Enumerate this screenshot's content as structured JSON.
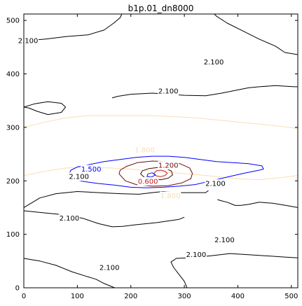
{
  "chart_data": {
    "type": "contour",
    "title": "b1p.01_dn8000",
    "xlabel": "",
    "ylabel": "",
    "xlim": [
      0,
      512
    ],
    "ylim": [
      0,
      512
    ],
    "xticks": [
      0,
      100,
      200,
      300,
      400,
      500
    ],
    "yticks": [
      0,
      100,
      200,
      300,
      400,
      500
    ],
    "grid": false,
    "levels": [
      {
        "value": 2.1,
        "label": "2.100",
        "color": "#000000",
        "paths": [
          [
            [
              0,
              462
            ],
            [
              40,
              465
            ],
            [
              80,
              470
            ],
            [
              120,
              473
            ],
            [
              150,
              482
            ],
            [
              168,
              495
            ],
            [
              180,
              505
            ],
            [
              183,
              512
            ]
          ],
          [
            [
              0,
              338
            ],
            [
              20,
              344
            ],
            [
              45,
              348
            ],
            [
              70,
              345
            ],
            [
              78,
              338
            ],
            [
              70,
              328
            ],
            [
              45,
              324
            ],
            [
              25,
              330
            ],
            [
              10,
              336
            ],
            [
              0,
              338
            ]
          ],
          [
            [
              512,
              436
            ],
            [
              488,
              440
            ],
            [
              470,
              452
            ],
            [
              440,
              465
            ],
            [
              410,
              480
            ],
            [
              380,
              495
            ],
            [
              360,
              508
            ],
            [
              356,
              512
            ]
          ],
          [
            [
              165,
              355
            ],
            [
              175,
              358
            ],
            [
              200,
              362
            ],
            [
              240,
              364
            ],
            [
              270,
              362
            ],
            [
              300,
              360
            ],
            [
              340,
              359
            ],
            [
              370,
              364
            ],
            [
              400,
              370
            ],
            [
              420,
              374
            ],
            [
              440,
              376
            ],
            [
              470,
              378
            ],
            [
              505,
              376
            ],
            [
              512,
              376
            ]
          ],
          [
            [
              0,
              150
            ],
            [
              30,
              168
            ],
            [
              60,
              176
            ],
            [
              100,
              180
            ],
            [
              140,
              178
            ],
            [
              180,
              176
            ],
            [
              215,
              175
            ],
            [
              240,
              178
            ],
            [
              260,
              180
            ],
            [
              290,
              178
            ],
            [
              320,
              178
            ],
            [
              340,
              178
            ],
            [
              345,
              182
            ]
          ],
          [
            [
              0,
              144
            ],
            [
              40,
              140
            ],
            [
              80,
              136
            ],
            [
              110,
              130
            ],
            [
              140,
              120
            ],
            [
              165,
              114
            ],
            [
              185,
              115
            ],
            [
              210,
              118
            ],
            [
              230,
              120
            ],
            [
              250,
              122
            ],
            [
              270,
              125
            ],
            [
              290,
              128
            ],
            [
              295,
              130
            ],
            [
              300,
              132
            ]
          ],
          [
            [
              512,
              150
            ],
            [
              490,
              154
            ],
            [
              465,
              158
            ],
            [
              440,
              160
            ],
            [
              420,
              156
            ],
            [
              405,
              154
            ],
            [
              395,
              154
            ],
            [
              380,
              160
            ],
            [
              368,
              163
            ],
            [
              362,
              165
            ]
          ],
          [
            [
              0,
              55
            ],
            [
              30,
              50
            ],
            [
              60,
              42
            ],
            [
              90,
              30
            ],
            [
              115,
              22
            ],
            [
              135,
              16
            ],
            [
              150,
              8
            ],
            [
              165,
              2
            ],
            [
              170,
              0
            ]
          ],
          [
            [
              512,
              56
            ],
            [
              480,
              58
            ],
            [
              450,
              60
            ],
            [
              420,
              62
            ],
            [
              385,
              64
            ],
            [
              350,
              60
            ],
            [
              310,
              56
            ],
            [
              285,
              55
            ],
            [
              275,
              48
            ],
            [
              280,
              38
            ],
            [
              290,
              25
            ],
            [
              300,
              12
            ],
            [
              305,
              0
            ]
          ]
        ],
        "labels": [
          [
            8,
            462
          ],
          [
            85,
            130
          ],
          [
            355,
            422
          ],
          [
            103,
            208
          ],
          [
            270,
            368
          ],
          [
            358,
            195
          ],
          [
            160,
            38
          ],
          [
            375,
            90
          ],
          [
            322,
            62
          ]
        ]
      },
      {
        "value": 1.8,
        "label": "1.800",
        "color": "#f7deb5",
        "paths": [
          [
            [
              0,
              300
            ],
            [
              40,
              310
            ],
            [
              80,
              318
            ],
            [
              120,
              322
            ],
            [
              160,
              322
            ],
            [
              200,
              322
            ],
            [
              240,
              322
            ],
            [
              280,
              320
            ],
            [
              320,
              318
            ],
            [
              360,
              314
            ],
            [
              400,
              310
            ],
            [
              440,
              306
            ],
            [
              480,
              302
            ],
            [
              512,
              298
            ]
          ],
          [
            [
              0,
              210
            ],
            [
              40,
              218
            ],
            [
              80,
              224
            ],
            [
              120,
              226
            ],
            [
              160,
              224
            ],
            [
              200,
              222
            ],
            [
              240,
              218
            ],
            [
              280,
              215
            ],
            [
              320,
              212
            ],
            [
              360,
              208
            ],
            [
              400,
              204
            ],
            [
              440,
              202
            ],
            [
              480,
              206
            ],
            [
              512,
              210
            ]
          ]
        ],
        "labels": [
          [
            274,
            172
          ],
          [
            226,
            258
          ]
        ]
      },
      {
        "value": 1.5,
        "label": "1.500",
        "color": "#0000ff",
        "paths": [
          [
            [
              88,
              205
            ],
            [
              110,
              199
            ],
            [
              140,
              195
            ],
            [
              170,
              192
            ],
            [
              200,
              188
            ],
            [
              230,
              187
            ],
            [
              260,
              188
            ],
            [
              290,
              190
            ],
            [
              320,
              193
            ],
            [
              350,
              200
            ],
            [
              380,
              207
            ],
            [
              410,
              214
            ],
            [
              440,
              220
            ],
            [
              448,
              222
            ],
            [
              445,
              228
            ],
            [
              420,
              232
            ],
            [
              390,
              234
            ],
            [
              360,
              236
            ],
            [
              330,
              240
            ],
            [
              300,
              244
            ],
            [
              270,
              246
            ],
            [
              240,
              246
            ],
            [
              210,
              244
            ],
            [
              180,
              240
            ],
            [
              150,
              236
            ],
            [
              120,
              230
            ],
            [
              100,
              226
            ],
            [
              88,
              220
            ],
            [
              84,
              212
            ],
            [
              88,
              205
            ]
          ]
        ],
        "labels": [
          [
            126,
            222
          ]
        ]
      },
      {
        "value": 1.2,
        "label": "1.200",
        "color": "#6e0a0a",
        "paths": [
          [
            [
              178,
              213
            ],
            [
              190,
              200
            ],
            [
              210,
              193
            ],
            [
              240,
              190
            ],
            [
              270,
              191
            ],
            [
              295,
              196
            ],
            [
              312,
              204
            ],
            [
              315,
              214
            ],
            [
              310,
              224
            ],
            [
              292,
              232
            ],
            [
              266,
              236
            ],
            [
              240,
              237
            ],
            [
              212,
              234
            ],
            [
              192,
              227
            ],
            [
              180,
              220
            ],
            [
              178,
              213
            ]
          ]
        ],
        "labels": [
          [
            270,
            229
          ]
        ]
      },
      {
        "value": 0.9,
        "label": "",
        "color": "#3c0a0a",
        "paths": [
          [
            [
              218,
              213
            ],
            [
              226,
              206
            ],
            [
              240,
              203
            ],
            [
              256,
              202
            ],
            [
              270,
              205
            ],
            [
              278,
              211
            ],
            [
              276,
              218
            ],
            [
              266,
              223
            ],
            [
              250,
              225
            ],
            [
              234,
              223
            ],
            [
              222,
              219
            ],
            [
              218,
              213
            ]
          ]
        ],
        "labels": []
      },
      {
        "value": 0.6,
        "label": "0.600",
        "color": "#c21e1e",
        "paths": [
          [
            [
              243,
              214
            ],
            [
              248,
              209
            ],
            [
              256,
              208
            ],
            [
              264,
              210
            ],
            [
              268,
              214
            ],
            [
              264,
              218
            ],
            [
              256,
              220
            ],
            [
              248,
              219
            ],
            [
              243,
              214
            ]
          ]
        ],
        "labels": [
          [
            232,
            199
          ]
        ]
      },
      {
        "value": 0.6,
        "label": "",
        "color": "#0000ff",
        "paths": [
          [
            [
              230,
              208
            ],
            [
              238,
              207
            ],
            [
              246,
              211
            ],
            [
              240,
              215
            ],
            [
              232,
              213
            ],
            [
              230,
              208
            ]
          ]
        ],
        "labels": []
      }
    ]
  }
}
